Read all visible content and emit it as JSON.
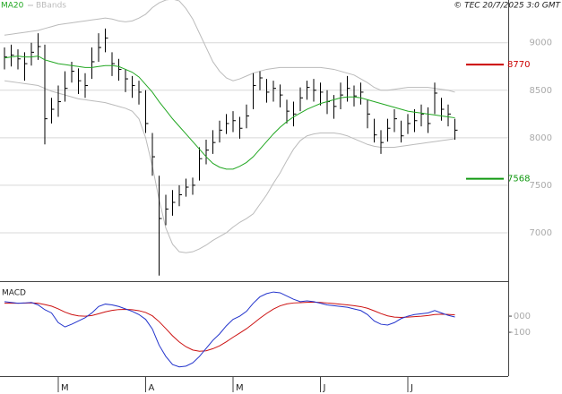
{
  "chart_data": [
    {
      "type": "ohlc",
      "source": "© TEC 20/7/2025 3:0 GMT",
      "color": "#000000",
      "categories": [
        null,
        null,
        null,
        null,
        null,
        null,
        null,
        null,
        "M",
        null,
        null,
        null,
        null,
        null,
        null,
        null,
        null,
        null,
        null,
        null,
        null,
        "A",
        null,
        null,
        null,
        null,
        null,
        null,
        null,
        null,
        null,
        null,
        null,
        null,
        "M",
        null,
        null,
        null,
        null,
        null,
        null,
        null,
        null,
        null,
        null,
        null,
        null,
        "J",
        null,
        null,
        null,
        null,
        null,
        null,
        null,
        null,
        null,
        null,
        null,
        null,
        "J",
        null,
        null,
        null,
        null,
        null,
        null,
        null
      ],
      "high": [
        8950,
        8980,
        8930,
        8900,
        9000,
        9100,
        8980,
        8420,
        8550,
        8700,
        8800,
        8730,
        8680,
        8950,
        9100,
        9150,
        8900,
        8830,
        8720,
        8650,
        8600,
        8500,
        8050,
        7600,
        7400,
        7450,
        7500,
        7570,
        7580,
        7900,
        7980,
        8080,
        8180,
        8250,
        8280,
        8220,
        8350,
        8680,
        8700,
        8620,
        8600,
        8560,
        8400,
        8380,
        8530,
        8600,
        8620,
        8580,
        8500,
        8450,
        8580,
        8650,
        8550,
        8580,
        8400,
        8200,
        8080,
        8200,
        8300,
        8180,
        8250,
        8300,
        8350,
        8320,
        8580,
        8420,
        8350,
        8200
      ],
      "low": [
        8720,
        8750,
        8720,
        8600,
        8760,
        8820,
        7930,
        8150,
        8220,
        8380,
        8580,
        8460,
        8420,
        8620,
        8800,
        8900,
        8650,
        8600,
        8480,
        8420,
        8350,
        8050,
        7600,
        6550,
        7080,
        7180,
        7280,
        7380,
        7400,
        7550,
        7720,
        7830,
        7950,
        8040,
        8060,
        7990,
        8100,
        8300,
        8500,
        8370,
        8380,
        8320,
        8150,
        8120,
        8280,
        8400,
        8380,
        8340,
        8250,
        8200,
        8300,
        8380,
        8330,
        8350,
        8100,
        7950,
        7830,
        7960,
        8060,
        7950,
        8040,
        8060,
        8120,
        8050,
        8250,
        8180,
        8120,
        7980
      ],
      "close": [
        8850,
        8870,
        8830,
        8780,
        8900,
        8960,
        8200,
        8300,
        8380,
        8520,
        8700,
        8600,
        8550,
        8800,
        8950,
        9050,
        8780,
        8720,
        8620,
        8550,
        8480,
        8150,
        7800,
        7150,
        7250,
        7320,
        7400,
        7480,
        7500,
        7780,
        7870,
        7950,
        8080,
        8150,
        8180,
        8100,
        8230,
        8550,
        8630,
        8480,
        8520,
        8450,
        8280,
        8250,
        8420,
        8530,
        8500,
        8480,
        8380,
        8330,
        8450,
        8520,
        8440,
        8480,
        8250,
        8030,
        7950,
        8100,
        8200,
        8020,
        8150,
        8180,
        8250,
        8150,
        8470,
        8300,
        8250,
        8080
      ],
      "series": [
        {
          "name": "MA20",
          "color": "#22a722",
          "values": [
            8840,
            8850,
            8860,
            8850,
            8850,
            8860,
            8820,
            8800,
            8780,
            8770,
            8760,
            8750,
            8740,
            8740,
            8750,
            8760,
            8760,
            8750,
            8720,
            8690,
            8640,
            8560,
            8480,
            8380,
            8290,
            8200,
            8120,
            8040,
            7960,
            7880,
            7800,
            7730,
            7690,
            7670,
            7670,
            7700,
            7740,
            7800,
            7880,
            7960,
            8040,
            8110,
            8170,
            8220,
            8260,
            8300,
            8330,
            8360,
            8380,
            8400,
            8420,
            8430,
            8430,
            8420,
            8400,
            8380,
            8360,
            8340,
            8320,
            8300,
            8280,
            8270,
            8260,
            8250,
            8240,
            8230,
            8220,
            8210
          ]
        },
        {
          "name": "BBands",
          "color": "#bbbbbb",
          "upper": [
            9080,
            9090,
            9100,
            9110,
            9120,
            9130,
            9150,
            9170,
            9190,
            9200,
            9210,
            9220,
            9230,
            9240,
            9250,
            9260,
            9250,
            9230,
            9220,
            9230,
            9260,
            9300,
            9370,
            9420,
            9450,
            9460,
            9440,
            9360,
            9250,
            9100,
            8950,
            8800,
            8700,
            8630,
            8600,
            8620,
            8650,
            8680,
            8700,
            8720,
            8730,
            8740,
            8740,
            8740,
            8740,
            8740,
            8740,
            8740,
            8730,
            8720,
            8700,
            8680,
            8660,
            8620,
            8580,
            8530,
            8500,
            8500,
            8510,
            8520,
            8530,
            8530,
            8530,
            8530,
            8520,
            8510,
            8500,
            8480
          ],
          "lower": [
            8600,
            8590,
            8580,
            8570,
            8560,
            8550,
            8520,
            8490,
            8470,
            8450,
            8430,
            8410,
            8400,
            8390,
            8380,
            8370,
            8350,
            8330,
            8310,
            8280,
            8200,
            8000,
            7700,
            7350,
            7050,
            6880,
            6800,
            6790,
            6800,
            6830,
            6870,
            6920,
            6960,
            7000,
            7060,
            7110,
            7150,
            7200,
            7300,
            7400,
            7520,
            7630,
            7760,
            7880,
            7970,
            8020,
            8040,
            8050,
            8050,
            8050,
            8040,
            8020,
            7990,
            7960,
            7930,
            7910,
            7900,
            7900,
            7900,
            7910,
            7920,
            7930,
            7940,
            7950,
            7960,
            7970,
            7980,
            7990
          ]
        }
      ],
      "annotations": [
        {
          "value": 8770,
          "color": "#cc0000"
        },
        {
          "value": 7568,
          "color": "#119911"
        }
      ],
      "ylim": [
        6500,
        9450
      ],
      "yticks": [
        7000,
        7500,
        8000,
        8500,
        9000
      ],
      "grid": true
    },
    {
      "type": "macd",
      "title": "MACD",
      "series": [
        {
          "color": "#2233cc",
          "values": [
            90,
            85,
            80,
            82,
            85,
            70,
            40,
            20,
            -40,
            -67,
            -50,
            -30,
            -10,
            20,
            60,
            75,
            70,
            60,
            45,
            30,
            10,
            -20,
            -80,
            -180,
            -250,
            -300,
            -315,
            -310,
            -290,
            -250,
            -200,
            -150,
            -110,
            -60,
            -20,
            0,
            30,
            80,
            120,
            140,
            150,
            145,
            125,
            105,
            90,
            95,
            90,
            80,
            70,
            65,
            60,
            55,
            45,
            35,
            10,
            -30,
            -50,
            -55,
            -40,
            -15,
            0,
            10,
            15,
            20,
            35,
            20,
            5,
            -5
          ]
        },
        {
          "color": "#cc1111",
          "values": [
            80,
            80,
            80,
            81,
            82,
            80,
            72,
            62,
            45,
            25,
            10,
            2,
            0,
            4,
            15,
            27,
            36,
            41,
            42,
            40,
            34,
            23,
            2,
            -34,
            -77,
            -122,
            -160,
            -190,
            -210,
            -218,
            -215,
            -202,
            -184,
            -159,
            -131,
            -105,
            -78,
            -46,
            -13,
            17,
            44,
            64,
            76,
            82,
            84,
            86,
            87,
            85,
            82,
            78,
            74,
            70,
            65,
            59,
            49,
            33,
            16,
            2,
            -6,
            -8,
            -6,
            -3,
            0,
            4,
            10,
            12,
            11,
            8
          ]
        }
      ],
      "ylim": [
        -372,
        206
      ],
      "yticks": [
        {
          "value": 0,
          "label": "000"
        },
        -100
      ]
    }
  ]
}
